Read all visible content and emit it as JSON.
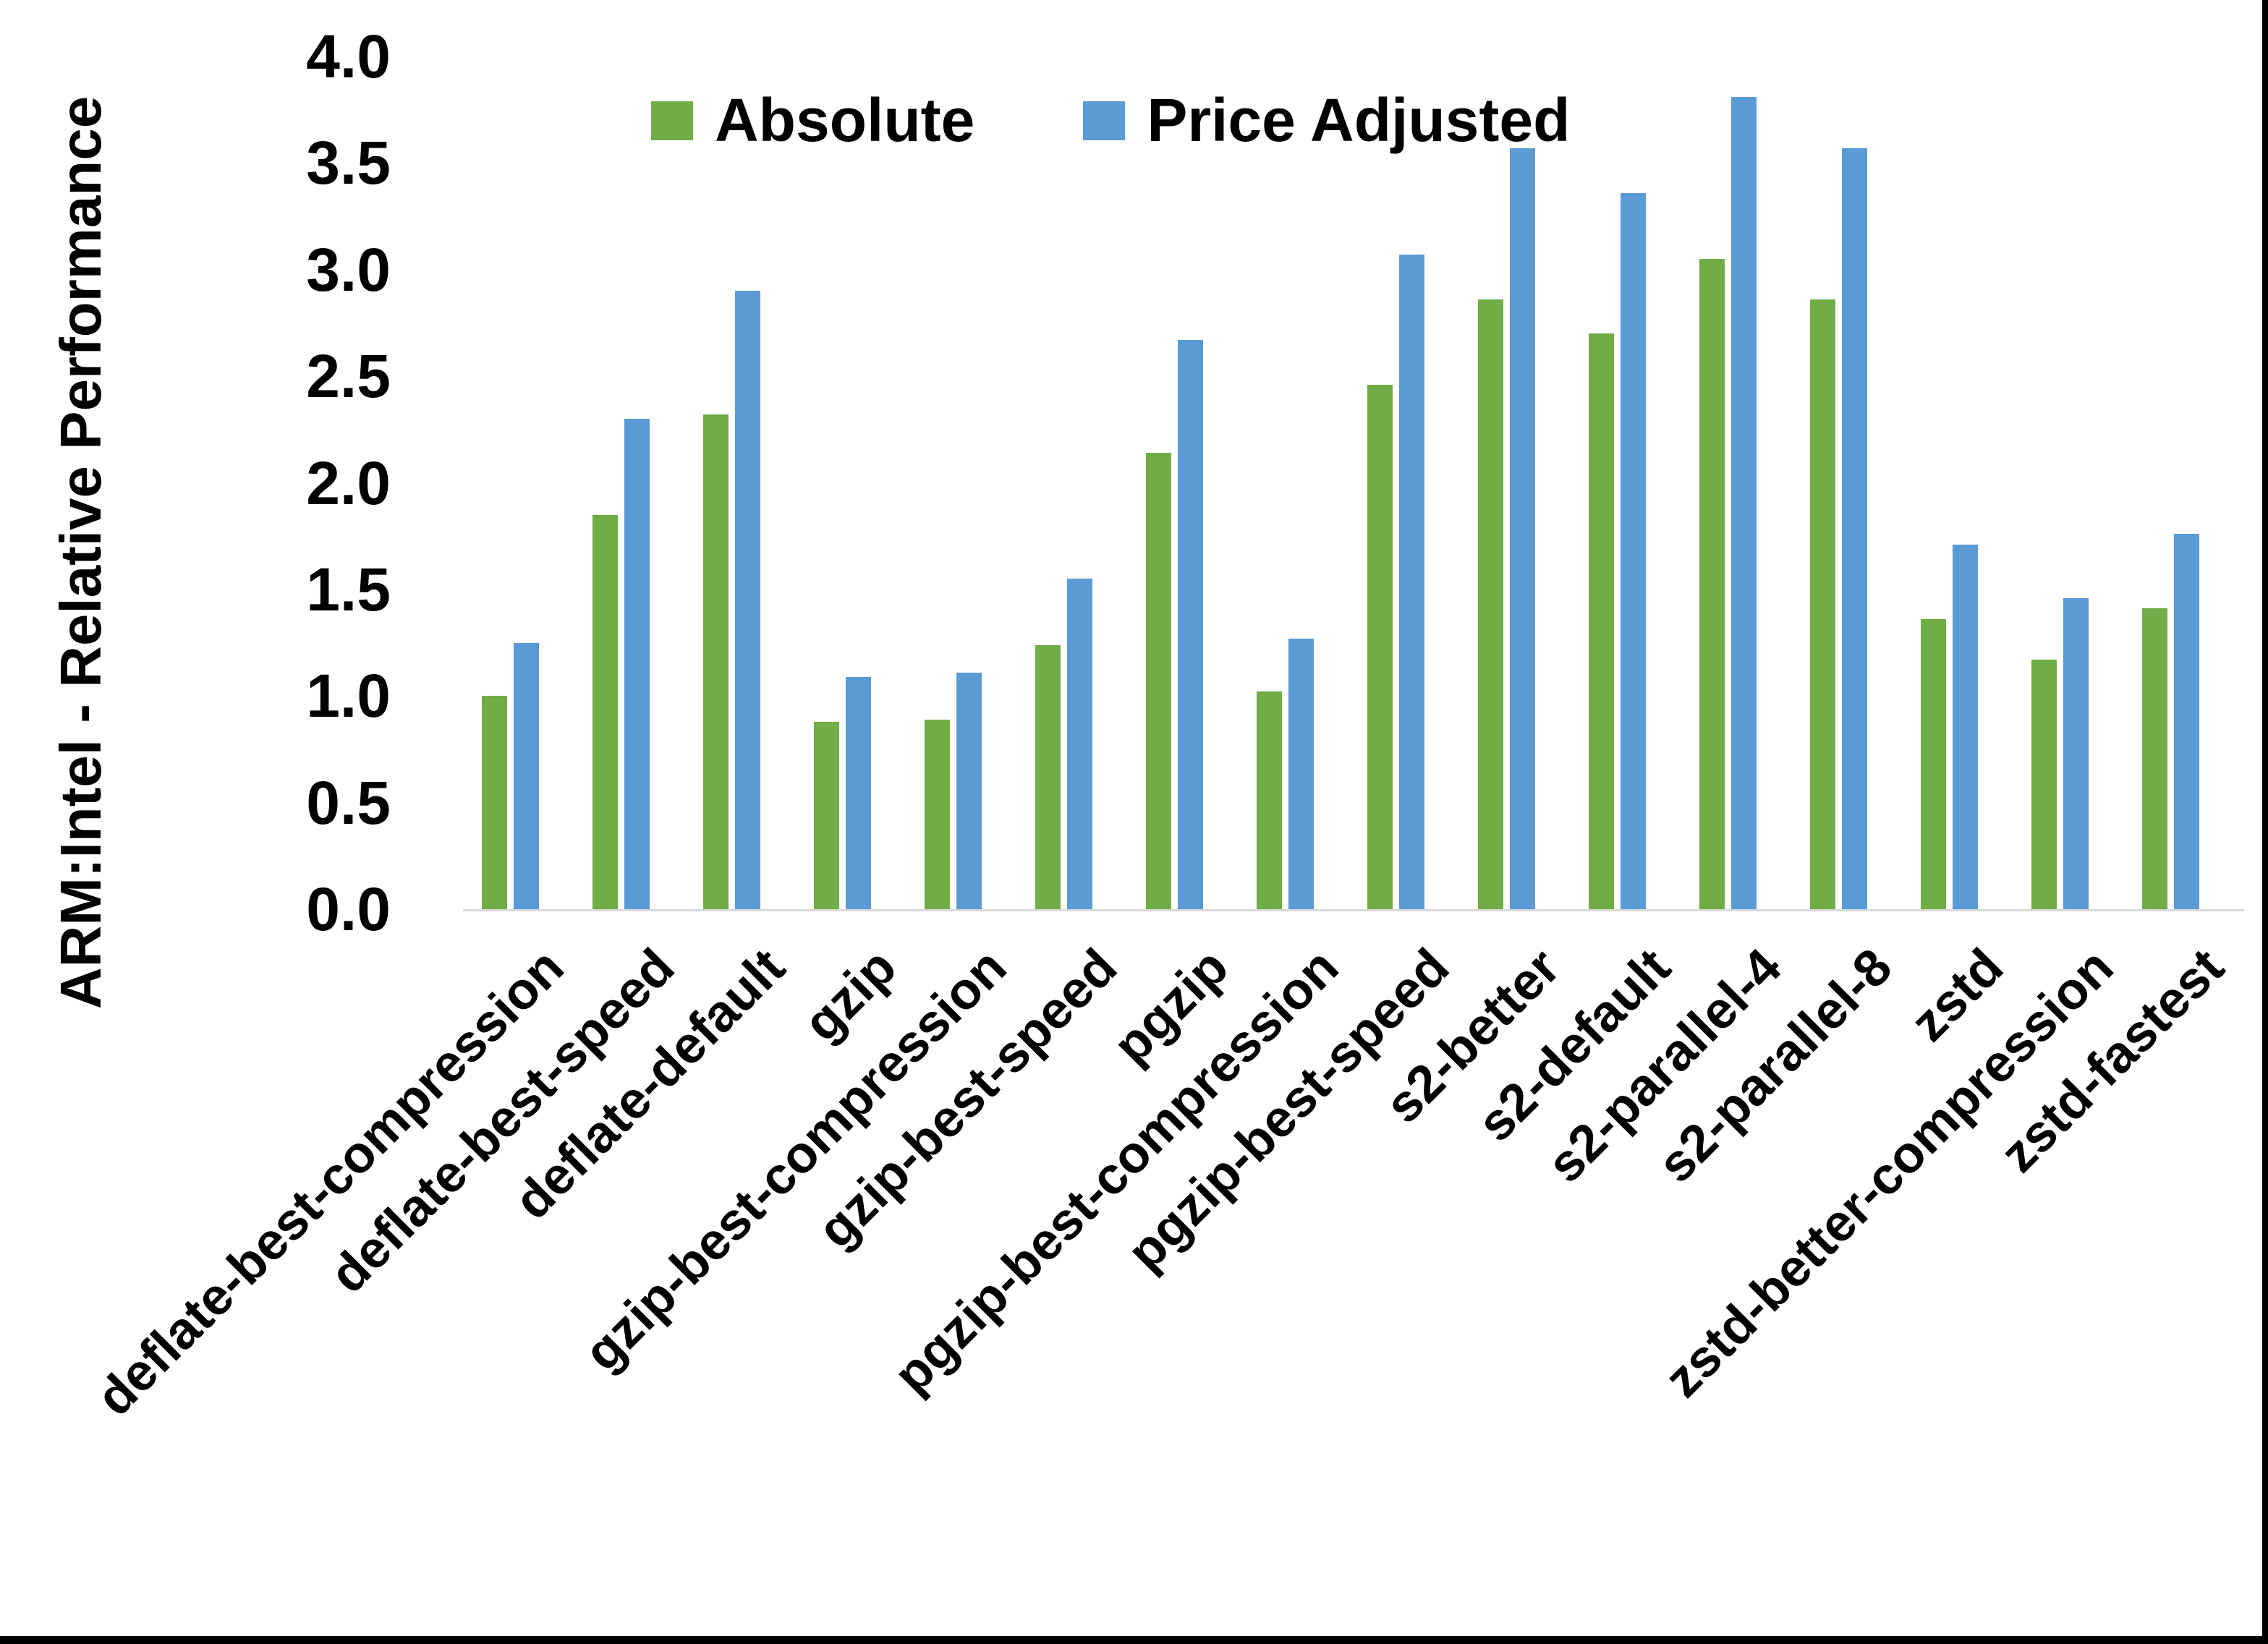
{
  "chart_data": {
    "type": "bar",
    "title": "",
    "ylabel": "ARM:Intel - Relative Performance",
    "xlabel": "",
    "ylim": [
      0.0,
      4.0
    ],
    "ytick_step": 0.5,
    "ytick_labels": [
      "0.0",
      "0.5",
      "1.0",
      "1.5",
      "2.0",
      "2.5",
      "3.0",
      "3.5",
      "4.0"
    ],
    "grid": "off",
    "legend_position": "top-center",
    "categories": [
      "deflate-best-compression",
      "deflate-best-speed",
      "deflate-default",
      "gzip",
      "gzip-best-compression",
      "gzip-best-speed",
      "pgzip",
      "pgzip-best-compression",
      "pgzip-best-speed",
      "s2-better",
      "s2-default",
      "s2-parallel-4",
      "s2-parallel-8",
      "zstd",
      "zstd-better-compression",
      "zstd-fastest"
    ],
    "series": [
      {
        "name": "Absolute",
        "color": "#70AD47",
        "values": [
          1.0,
          1.85,
          2.32,
          0.88,
          0.89,
          1.24,
          2.14,
          1.02,
          2.46,
          2.86,
          2.7,
          3.05,
          2.86,
          1.36,
          1.17,
          1.41
        ]
      },
      {
        "name": "Price Adjusted",
        "color": "#5B9BD5",
        "values": [
          1.25,
          2.3,
          2.9,
          1.09,
          1.11,
          1.55,
          2.67,
          1.27,
          3.07,
          3.57,
          3.36,
          3.81,
          3.57,
          1.71,
          1.46,
          1.76
        ]
      }
    ],
    "axis_line_color": "#D9D9D9",
    "text_color": "#000000",
    "background_color": "#FFFFFF",
    "border_color": "#000000"
  }
}
